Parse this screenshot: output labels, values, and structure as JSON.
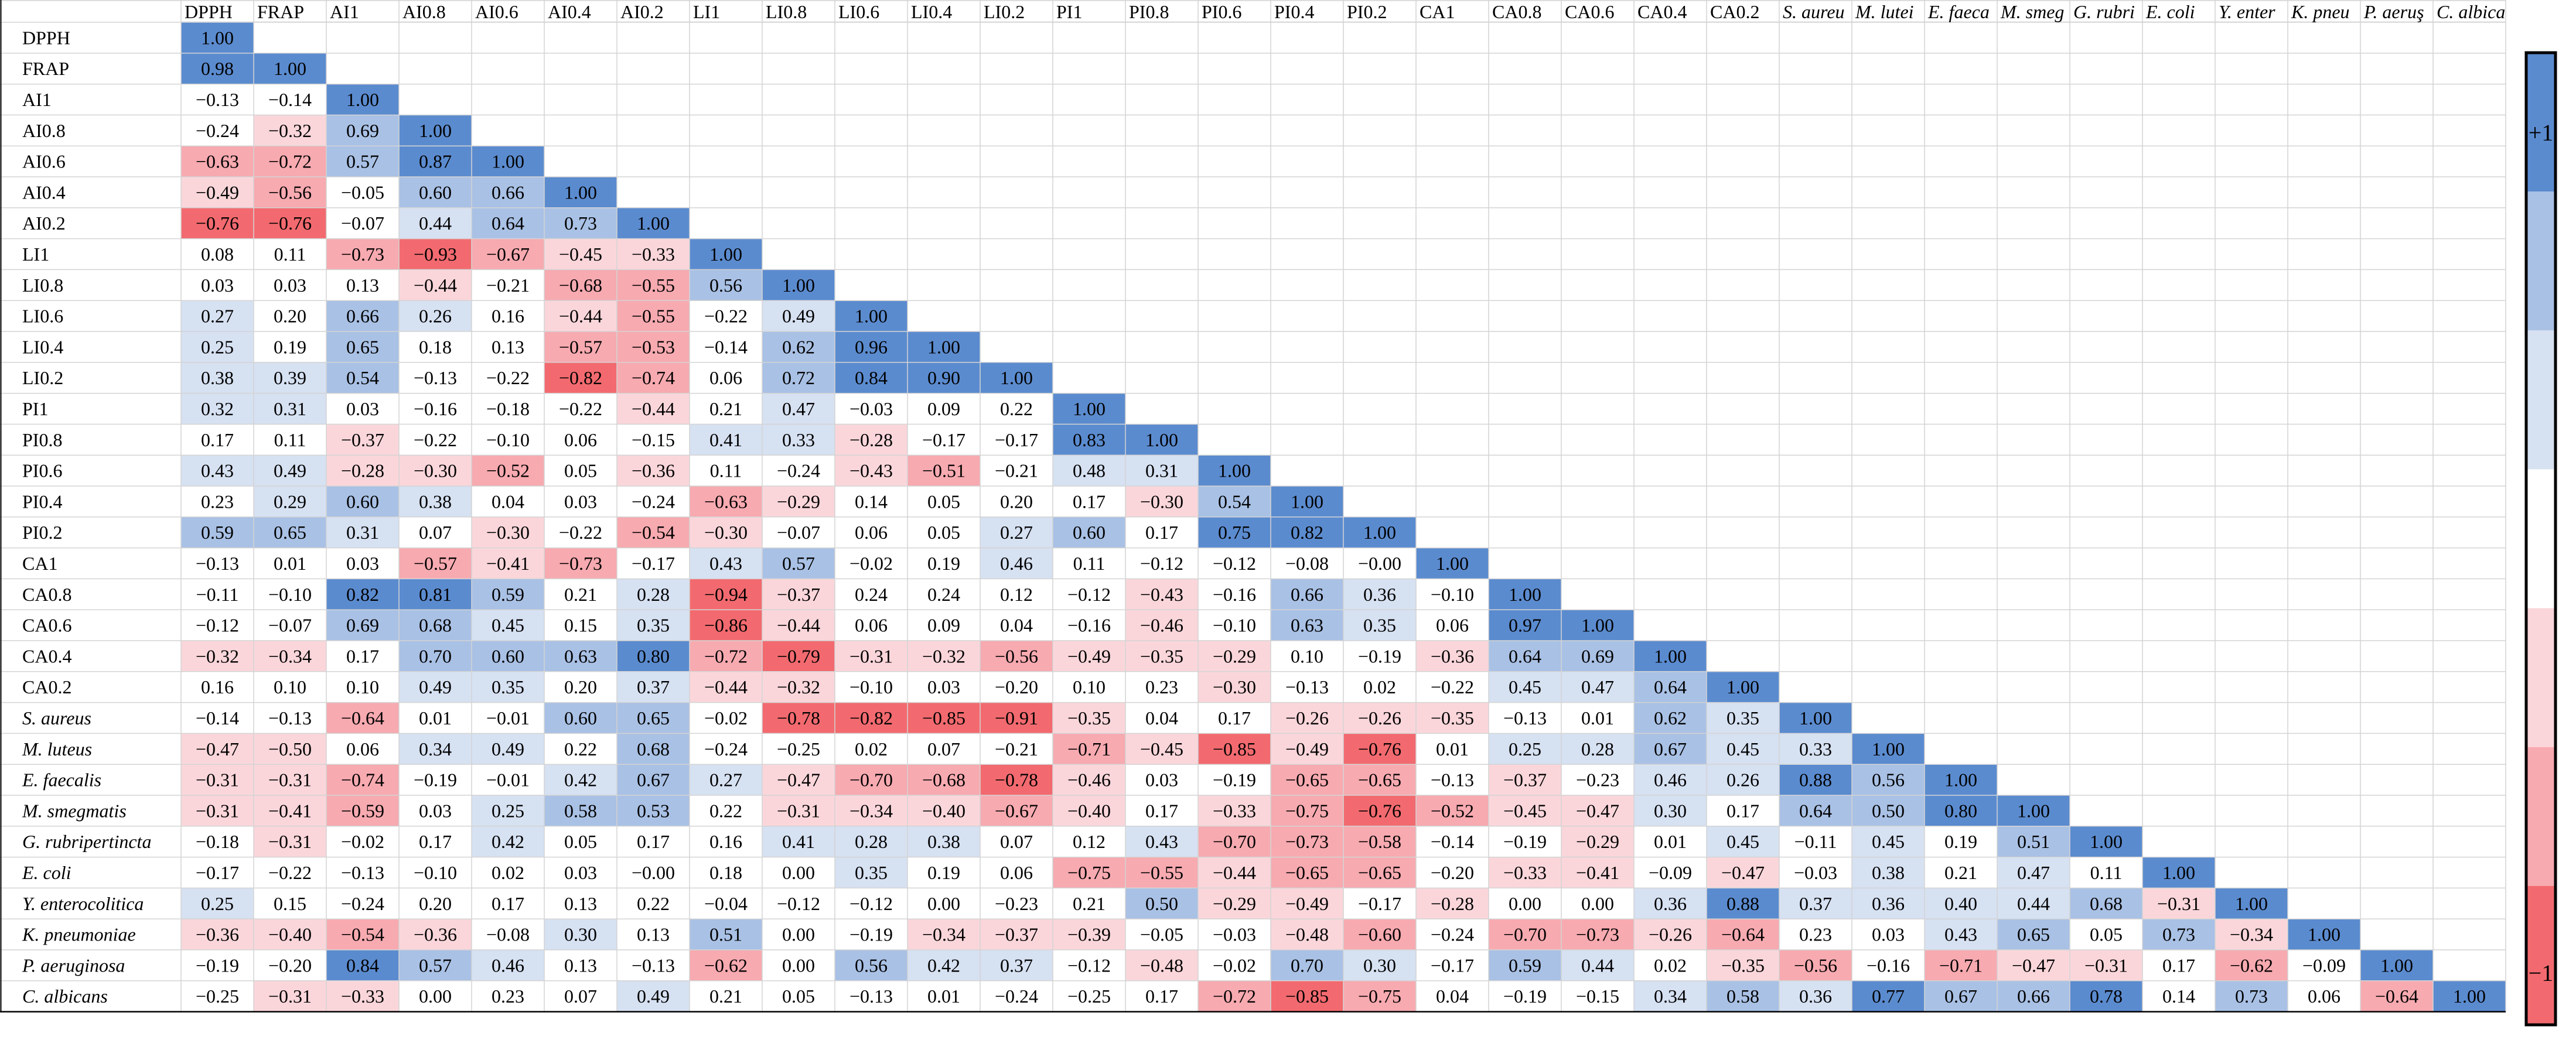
{
  "chart_data": {
    "type": "heatmap",
    "title": "",
    "variables": [
      "DPPH",
      "FRAP",
      "AI1",
      "AI0.8",
      "AI0.6",
      "AI0.4",
      "AI0.2",
      "LI1",
      "LI0.8",
      "LI0.6",
      "LI0.4",
      "LI0.2",
      "PI1",
      "PI0.8",
      "PI0.6",
      "PI0.4",
      "PI0.2",
      "CA1",
      "CA0.8",
      "CA0.6",
      "CA0.4",
      "CA0.2",
      "S. aureus",
      "M. luteus",
      "E. faecalis",
      "M. smegmatis",
      "G. rubripertincta",
      "E. coli",
      "Y. enterocolitica",
      "K. pneumoniae",
      "P. aeruginosa",
      "C. albicans"
    ],
    "italic_variables": [
      "S. aureus",
      "M. luteus",
      "E. faecalis",
      "M. smegmatis",
      "G. rubripertincta",
      "E. coli",
      "Y. enterocolitica",
      "K. pneumoniae",
      "P. aeruginosa",
      "C. albicans"
    ],
    "column_labels": [
      "DPPH",
      "FRAP",
      "AI1",
      "AI0.8",
      "AI0.6",
      "AI0.4",
      "AI0.2",
      "LI1",
      "LI0.8",
      "LI0.6",
      "LI0.4",
      "LI0.2",
      "PI1",
      "PI0.8",
      "PI0.6",
      "PI0.4",
      "PI0.2",
      "CA1",
      "CA0.8",
      "CA0.6",
      "CA0.4",
      "CA0.2",
      "S. aureu",
      "M. lutei",
      "E. faeca",
      "M. smeg",
      "G. rubri",
      "E. coli",
      "Y. enter",
      "K. pneu",
      "P. aeruş",
      "C. albica"
    ],
    "matrix": [
      [
        "1.00"
      ],
      [
        "0.98",
        "1.00"
      ],
      [
        "−0.13",
        "−0.14",
        "1.00"
      ],
      [
        "−0.24",
        "−0.32",
        "0.69",
        "1.00"
      ],
      [
        "−0.63",
        "−0.72",
        "0.57",
        "0.87",
        "1.00"
      ],
      [
        "−0.49",
        "−0.56",
        "−0.05",
        "0.60",
        "0.66",
        "1.00"
      ],
      [
        "−0.76",
        "−0.76",
        "−0.07",
        "0.44",
        "0.64",
        "0.73",
        "1.00"
      ],
      [
        "0.08",
        "0.11",
        "−0.73",
        "−0.93",
        "−0.67",
        "−0.45",
        "−0.33",
        "1.00"
      ],
      [
        "0.03",
        "0.03",
        "0.13",
        "−0.44",
        "−0.21",
        "−0.68",
        "−0.55",
        "0.56",
        "1.00"
      ],
      [
        "0.27",
        "0.20",
        "0.66",
        "0.26",
        "0.16",
        "−0.44",
        "−0.55",
        "−0.22",
        "0.49",
        "1.00"
      ],
      [
        "0.25",
        "0.19",
        "0.65",
        "0.18",
        "0.13",
        "−0.57",
        "−0.53",
        "−0.14",
        "0.62",
        "0.96",
        "1.00"
      ],
      [
        "0.38",
        "0.39",
        "0.54",
        "−0.13",
        "−0.22",
        "−0.82",
        "−0.74",
        "0.06",
        "0.72",
        "0.84",
        "0.90",
        "1.00"
      ],
      [
        "0.32",
        "0.31",
        "0.03",
        "−0.16",
        "−0.18",
        "−0.22",
        "−0.44",
        "0.21",
        "0.47",
        "−0.03",
        "0.09",
        "0.22",
        "1.00"
      ],
      [
        "0.17",
        "0.11",
        "−0.37",
        "−0.22",
        "−0.10",
        "0.06",
        "−0.15",
        "0.41",
        "0.33",
        "−0.28",
        "−0.17",
        "−0.17",
        "0.83",
        "1.00"
      ],
      [
        "0.43",
        "0.49",
        "−0.28",
        "−0.30",
        "−0.52",
        "0.05",
        "−0.36",
        "0.11",
        "−0.24",
        "−0.43",
        "−0.51",
        "−0.21",
        "0.48",
        "0.31",
        "1.00"
      ],
      [
        "0.23",
        "0.29",
        "0.60",
        "0.38",
        "0.04",
        "0.03",
        "−0.24",
        "−0.63",
        "−0.29",
        "0.14",
        "0.05",
        "0.20",
        "0.17",
        "−0.30",
        "0.54",
        "1.00"
      ],
      [
        "0.59",
        "0.65",
        "0.31",
        "0.07",
        "−0.30",
        "−0.22",
        "−0.54",
        "−0.30",
        "−0.07",
        "0.06",
        "0.05",
        "0.27",
        "0.60",
        "0.17",
        "0.75",
        "0.82",
        "1.00"
      ],
      [
        "−0.13",
        "0.01",
        "0.03",
        "−0.57",
        "−0.41",
        "−0.73",
        "−0.17",
        "0.43",
        "0.57",
        "−0.02",
        "0.19",
        "0.46",
        "0.11",
        "−0.12",
        "−0.12",
        "−0.08",
        "−0.00",
        "1.00"
      ],
      [
        "−0.11",
        "−0.10",
        "0.82",
        "0.81",
        "0.59",
        "0.21",
        "0.28",
        "−0.94",
        "−0.37",
        "0.24",
        "0.24",
        "0.12",
        "−0.12",
        "−0.43",
        "−0.16",
        "0.66",
        "0.36",
        "−0.10",
        "1.00"
      ],
      [
        "−0.12",
        "−0.07",
        "0.69",
        "0.68",
        "0.45",
        "0.15",
        "0.35",
        "−0.86",
        "−0.44",
        "0.06",
        "0.09",
        "0.04",
        "−0.16",
        "−0.46",
        "−0.10",
        "0.63",
        "0.35",
        "0.06",
        "0.97",
        "1.00"
      ],
      [
        "−0.32",
        "−0.34",
        "0.17",
        "0.70",
        "0.60",
        "0.63",
        "0.80",
        "−0.72",
        "−0.79",
        "−0.31",
        "−0.32",
        "−0.56",
        "−0.49",
        "−0.35",
        "−0.29",
        "0.10",
        "−0.19",
        "−0.36",
        "0.64",
        "0.69",
        "1.00"
      ],
      [
        "0.16",
        "0.10",
        "0.10",
        "0.49",
        "0.35",
        "0.20",
        "0.37",
        "−0.44",
        "−0.32",
        "−0.10",
        "0.03",
        "−0.20",
        "0.10",
        "0.23",
        "−0.30",
        "−0.13",
        "0.02",
        "−0.22",
        "0.45",
        "0.47",
        "0.64",
        "1.00"
      ],
      [
        "−0.14",
        "−0.13",
        "−0.64",
        "0.01",
        "−0.01",
        "0.60",
        "0.65",
        "−0.02",
        "−0.78",
        "−0.82",
        "−0.85",
        "−0.91",
        "−0.35",
        "0.04",
        "0.17",
        "−0.26",
        "−0.26",
        "−0.35",
        "−0.13",
        "0.01",
        "0.62",
        "0.35",
        "1.00"
      ],
      [
        "−0.47",
        "−0.50",
        "0.06",
        "0.34",
        "0.49",
        "0.22",
        "0.68",
        "−0.24",
        "−0.25",
        "0.02",
        "0.07",
        "−0.21",
        "−0.71",
        "−0.45",
        "−0.85",
        "−0.49",
        "−0.76",
        "0.01",
        "0.25",
        "0.28",
        "0.67",
        "0.45",
        "0.33",
        "1.00"
      ],
      [
        "−0.31",
        "−0.31",
        "−0.74",
        "−0.19",
        "−0.01",
        "0.42",
        "0.67",
        "0.27",
        "−0.47",
        "−0.70",
        "−0.68",
        "−0.78",
        "−0.46",
        "0.03",
        "−0.19",
        "−0.65",
        "−0.65",
        "−0.13",
        "−0.37",
        "−0.23",
        "0.46",
        "0.26",
        "0.88",
        "0.56",
        "1.00"
      ],
      [
        "−0.31",
        "−0.41",
        "−0.59",
        "0.03",
        "0.25",
        "0.58",
        "0.53",
        "0.22",
        "−0.31",
        "−0.34",
        "−0.40",
        "−0.67",
        "−0.40",
        "0.17",
        "−0.33",
        "−0.75",
        "−0.76",
        "−0.52",
        "−0.45",
        "−0.47",
        "0.30",
        "0.17",
        "0.64",
        "0.50",
        "0.80",
        "1.00"
      ],
      [
        "−0.18",
        "−0.31",
        "−0.02",
        "0.17",
        "0.42",
        "0.05",
        "0.17",
        "0.16",
        "0.41",
        "0.28",
        "0.38",
        "0.07",
        "0.12",
        "0.43",
        "−0.70",
        "−0.73",
        "−0.58",
        "−0.14",
        "−0.19",
        "−0.29",
        "0.01",
        "0.45",
        "−0.11",
        "0.45",
        "0.19",
        "0.51",
        "1.00"
      ],
      [
        "−0.17",
        "−0.22",
        "−0.13",
        "−0.10",
        "0.02",
        "0.03",
        "−0.00",
        "0.18",
        "0.00",
        "0.35",
        "0.19",
        "0.06",
        "−0.75",
        "−0.55",
        "−0.44",
        "−0.65",
        "−0.65",
        "−0.20",
        "−0.33",
        "−0.41",
        "−0.09",
        "−0.47",
        "−0.03",
        "0.38",
        "0.21",
        "0.47",
        "0.11",
        "1.00"
      ],
      [
        "0.25",
        "0.15",
        "−0.24",
        "0.20",
        "0.17",
        "0.13",
        "0.22",
        "−0.04",
        "−0.12",
        "−0.12",
        "0.00",
        "−0.23",
        "0.21",
        "0.50",
        "−0.29",
        "−0.49",
        "−0.17",
        "−0.28",
        "0.00",
        "0.00",
        "0.36",
        "0.88",
        "0.37",
        "0.36",
        "0.40",
        "0.44",
        "0.68",
        "−0.31",
        "1.00"
      ],
      [
        "−0.36",
        "−0.40",
        "−0.54",
        "−0.36",
        "−0.08",
        "0.30",
        "0.13",
        "0.51",
        "0.00",
        "−0.19",
        "−0.34",
        "−0.37",
        "−0.39",
        "−0.05",
        "−0.03",
        "−0.48",
        "−0.60",
        "−0.24",
        "−0.70",
        "−0.73",
        "−0.26",
        "−0.64",
        "0.23",
        "0.03",
        "0.43",
        "0.65",
        "0.05",
        "0.73",
        "−0.34",
        "1.00"
      ],
      [
        "−0.19",
        "−0.20",
        "0.84",
        "0.57",
        "0.46",
        "0.13",
        "−0.13",
        "−0.62",
        "0.00",
        "0.56",
        "0.42",
        "0.37",
        "−0.12",
        "−0.48",
        "−0.02",
        "0.70",
        "0.30",
        "−0.17",
        "0.59",
        "0.44",
        "0.02",
        "−0.35",
        "−0.56",
        "−0.16",
        "−0.71",
        "−0.47",
        "−0.31",
        "0.17",
        "−0.62",
        "−0.09",
        "1.00"
      ],
      [
        "−0.25",
        "−0.31",
        "−0.33",
        "0.00",
        "0.23",
        "0.07",
        "0.49",
        "0.21",
        "0.05",
        "−0.13",
        "0.01",
        "−0.24",
        "−0.25",
        "0.17",
        "−0.72",
        "−0.85",
        "−0.75",
        "0.04",
        "−0.19",
        "−0.15",
        "0.34",
        "0.58",
        "0.36",
        "0.77",
        "0.67",
        "0.66",
        "0.78",
        "0.14",
        "0.73",
        "0.06",
        "−0.64",
        "1.00"
      ]
    ],
    "range": [
      -1,
      1
    ],
    "legend": {
      "position": "right",
      "max_label": "+1",
      "min_label": "−1",
      "bands": [
        {
          "from": 0.75,
          "to": 1.0,
          "color": "#5b8bcf"
        },
        {
          "from": 0.5,
          "to": 0.75,
          "color": "#a9c1e5"
        },
        {
          "from": 0.25,
          "to": 0.5,
          "color": "#d6e1f2"
        },
        {
          "from": -0.25,
          "to": 0.25,
          "color": "#ffffff"
        },
        {
          "from": -0.5,
          "to": -0.25,
          "color": "#fad6da"
        },
        {
          "from": -0.75,
          "to": -0.5,
          "color": "#f7aab0"
        },
        {
          "from": -1.0,
          "to": -0.75,
          "color": "#f26a6f"
        }
      ]
    },
    "colors": {
      "positive": "#5b8bcf",
      "negative": "#f26a6f",
      "neutral": "#ffffff",
      "grid": "#d4d4d4",
      "border": "#000000"
    }
  }
}
